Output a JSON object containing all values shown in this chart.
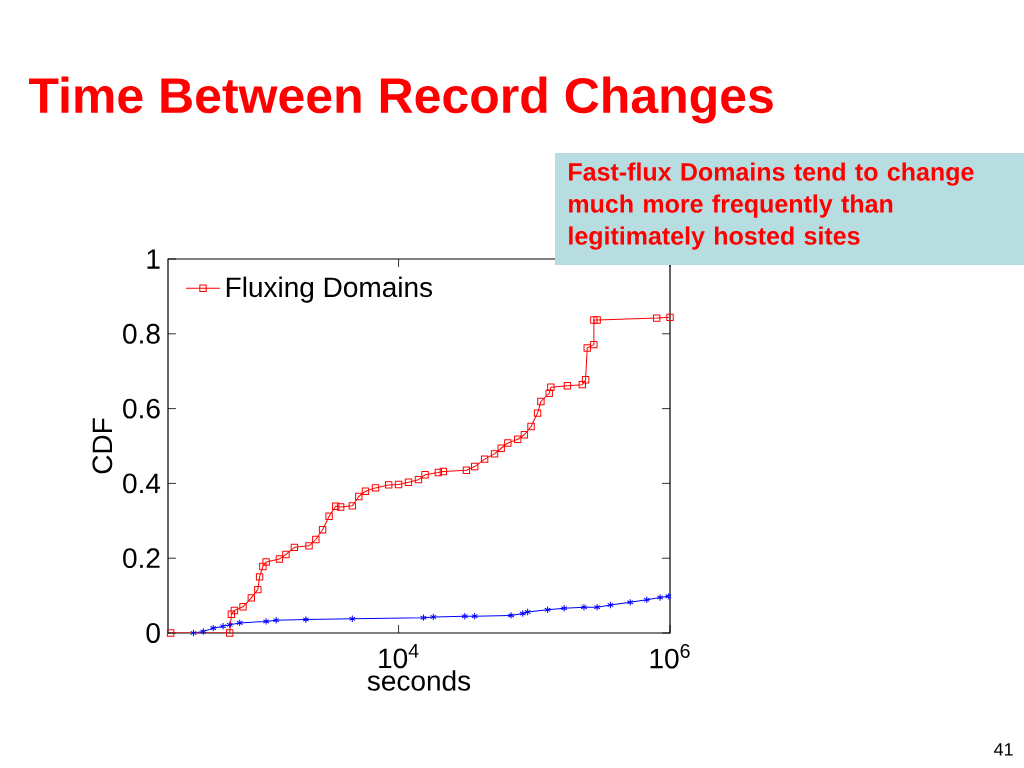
{
  "chart_data": {
    "type": "line",
    "title": "Time Between Record Changes",
    "xlabel": "seconds",
    "ylabel": "CDF",
    "annotations": [
      "Fast-flux Domains tend to change much more frequently than legitimately hosted sites",
      "41"
    ],
    "log": "x",
    "xlim": [
      200,
      1000000
    ],
    "xticks": [
      {
        "value": 10000,
        "label": "10$^{4}$"
      },
      {
        "value": 1000000,
        "label": "10$^{6}$"
      }
    ],
    "ylim": [
      0,
      1
    ],
    "yticks": [
      {
        "value": 0,
        "label": "0"
      },
      {
        "value": 0.2,
        "label": "0.2"
      },
      {
        "value": 0.4,
        "label": "0.4"
      },
      {
        "value": 0.6,
        "label": "0.6"
      },
      {
        "value": 0.8,
        "label": "0.8"
      },
      {
        "value": 1,
        "label": "1"
      }
    ],
    "grid": false,
    "legend": "top left",
    "line_style": "solid",
    "series": [
      {
        "color": "#0000ff",
        "marker": "cross",
        "x": [
          308,
          364,
          431,
          509,
          570,
          675,
          1057,
          1253,
          2075,
          4560,
          15240,
          18030,
          30760,
          36390,
          67450,
          82220,
          89330,
          125300,
          166000,
          232300,
          290400,
          363900,
          509300,
          674500,
          845300,
          972700
        ],
        "values": [
          0,
          0.004,
          0.013,
          0.018,
          0.022,
          0.027,
          0.031,
          0.034,
          0.036,
          0.038,
          0.041,
          0.043,
          0.045,
          0.045,
          0.047,
          0.052,
          0.056,
          0.062,
          0.066,
          0.069,
          0.069,
          0.075,
          0.082,
          0.089,
          0.095,
          0.098
        ]
      },
      {
        "name": "Fluxing Domains",
        "color": "#ff0000",
        "marker": "square",
        "x": [
          209,
          570,
          586,
          617,
          714,
          822,
          918,
          946,
          1000,
          1057,
          1324,
          1479,
          1706,
          2188,
          2455,
          2754,
          3076,
          3443,
          3741,
          4560,
          5093,
          5702,
          6761,
          8453,
          10000,
          11830,
          14000,
          15670,
          19630,
          21380,
          31620,
          36390,
          43050,
          50930,
          57020,
          63830,
          75510,
          84530,
          94620,
          105700,
          111900,
          128800,
          132400,
          175400,
          225900,
          238800,
          245500,
          274800,
          274800,
          290400,
          798000,
          1000000
        ],
        "values": [
          0,
          0,
          0.05,
          0.06,
          0.07,
          0.094,
          0.116,
          0.15,
          0.178,
          0.19,
          0.198,
          0.21,
          0.229,
          0.233,
          0.25,
          0.276,
          0.312,
          0.339,
          0.337,
          0.34,
          0.365,
          0.379,
          0.388,
          0.396,
          0.397,
          0.403,
          0.41,
          0.423,
          0.429,
          0.432,
          0.435,
          0.445,
          0.465,
          0.479,
          0.494,
          0.508,
          0.518,
          0.53,
          0.552,
          0.588,
          0.619,
          0.641,
          0.657,
          0.661,
          0.664,
          0.677,
          0.762,
          0.771,
          0.837,
          0.837,
          0.842,
          0.844
        ]
      }
    ]
  }
}
